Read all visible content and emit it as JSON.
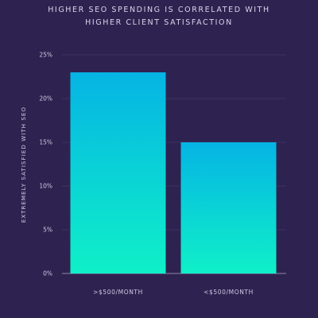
{
  "chart_data": {
    "type": "bar",
    "title_lines": [
      "HIGHER SEO SPENDING IS CORRELATED WITH",
      "HIGHER CLIENT SATISFACTION"
    ],
    "categories": [
      ">$500/MONTH",
      "<$500/MONTH"
    ],
    "values": [
      23,
      15
    ],
    "ylabel": "EXTREMELY SATISFIED WITH SEO",
    "xlabel": "",
    "ylim": [
      0,
      25
    ],
    "yticks": [
      "0%",
      "5%",
      "10%",
      "15%",
      "20%",
      "25%"
    ],
    "grid": true,
    "colors": {
      "background": "#2e2350",
      "bar_top": "#05b4e4",
      "bar_bottom": "#0ff0c8",
      "grid": "#4a4170"
    }
  }
}
